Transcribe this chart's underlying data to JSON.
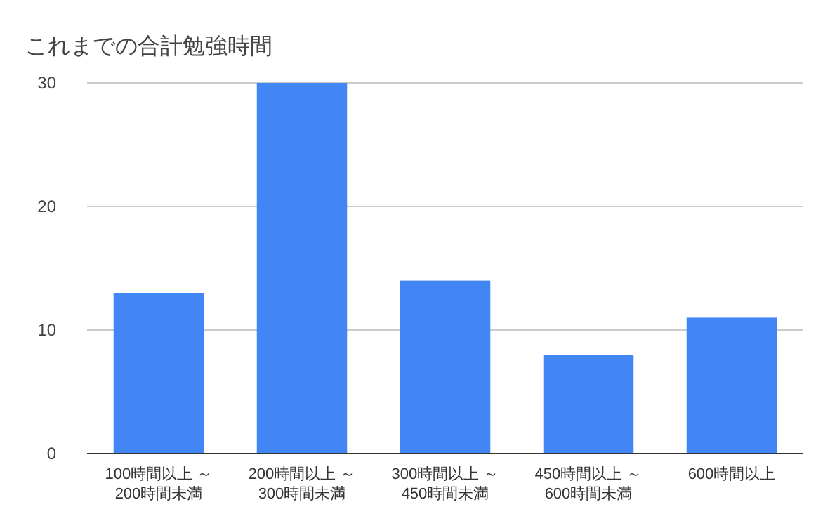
{
  "chart_data": {
    "type": "bar",
    "title": "これまでの合計勉強時間",
    "categories": [
      "100時間以上 ～\n200時間未満",
      "200時間以上 ～\n300時間未満",
      "300時間以上 ～\n450時間未満",
      "450時間以上 ～\n600時間未満",
      "600時間以上"
    ],
    "values": [
      13,
      30,
      14,
      8,
      11
    ],
    "color": "#4285f4",
    "ylim": [
      0,
      30
    ],
    "yticks": [
      0,
      10,
      20,
      30
    ],
    "grid": "y"
  }
}
